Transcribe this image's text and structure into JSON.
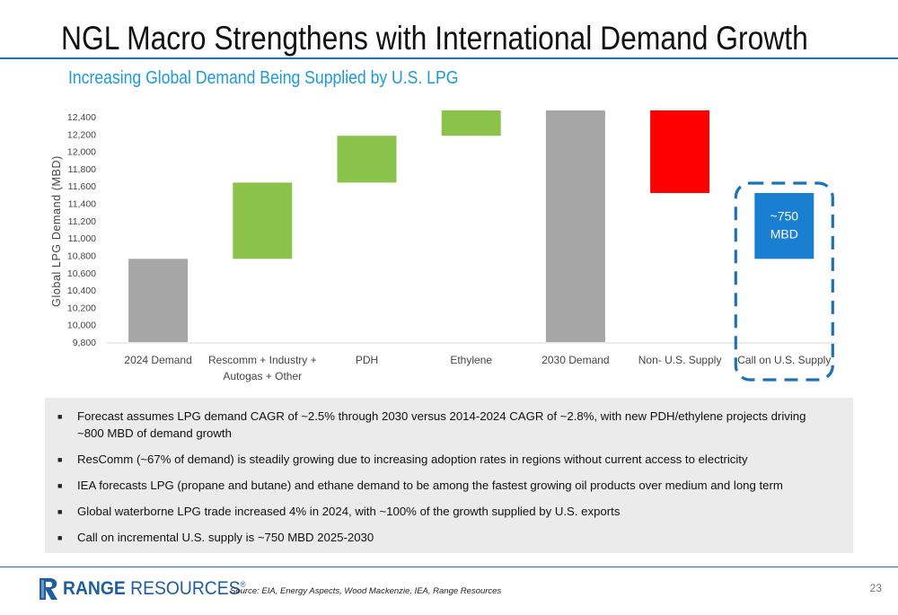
{
  "title": "NGL Macro Strengthens with International Demand Growth",
  "subtitle": "Increasing Global Demand Being Supplied by U.S. LPG",
  "chart_data": {
    "type": "waterfall",
    "ylabel": "Global LPG Demand (MBD)",
    "ylim": [
      9800,
      12400
    ],
    "yticks": [
      9800,
      10000,
      10200,
      10400,
      10600,
      10800,
      11000,
      11200,
      11400,
      11600,
      11800,
      12000,
      12200,
      12400
    ],
    "categories": [
      "2024 Demand",
      "Rescomm + Industry + Autogas + Other",
      "PDH",
      "Ethylene",
      "2030 Demand",
      "Non- U.S. Supply",
      "Call on U.S. Supply"
    ],
    "bars": [
      {
        "category": "2024 Demand",
        "kind": "total",
        "from": 9800,
        "to": 10760
      },
      {
        "category": "Rescomm + Industry + Autogas + Other",
        "kind": "increase",
        "from": 10760,
        "to": 11640
      },
      {
        "category": "PDH",
        "kind": "increase",
        "from": 11640,
        "to": 12180
      },
      {
        "category": "Ethylene",
        "kind": "increase",
        "from": 12180,
        "to": 12480
      },
      {
        "category": "2030 Demand",
        "kind": "total",
        "from": 9800,
        "to": 12480
      },
      {
        "category": "Non- U.S. Supply",
        "kind": "decrease",
        "from": 12480,
        "to": 11520
      },
      {
        "category": "Call on U.S. Supply",
        "kind": "highlight",
        "from": 11520,
        "to": 10760
      }
    ],
    "annotation": {
      "category": "Call on U.S. Supply",
      "lines": [
        "~750",
        "MBD"
      ]
    },
    "colors": {
      "total": "#a6a6a6",
      "increase": "#8bc34a",
      "decrease": "#ff0000",
      "highlight": "#1a7fd0",
      "callout_border": "#1a73b8"
    },
    "grid": false,
    "legend": "none"
  },
  "notes": [
    "Forecast assumes LPG demand CAGR of ~2.5% through 2030 versus 2014-2024 CAGR of ~2.8%, with new PDH/ethylene projects driving ~800 MBD of demand growth",
    "ResComm (~67% of demand) is steadily growing due to increasing adoption rates in regions without current access to electricity",
    "IEA forecasts LPG (propane and butane) and ethane demand to be among the fastest growing oil products over medium and long term",
    "Global waterborne LPG trade increased 4% in 2024, with ~100% of the growth supplied by U.S. exports",
    "Call on incremental U.S. supply is ~750 MBD 2025-2030"
  ],
  "footer": {
    "logo_bold": "RANGE",
    "logo_rest": " RESOURCES",
    "logo_mark": "®",
    "source": "Source: EIA, Energy Aspects, Wood Mackenzie, IEA, Range Resources",
    "page_number": "23"
  },
  "icons": {
    "bullet": "square-bullet-icon",
    "logo": "range-r-logo-icon"
  }
}
